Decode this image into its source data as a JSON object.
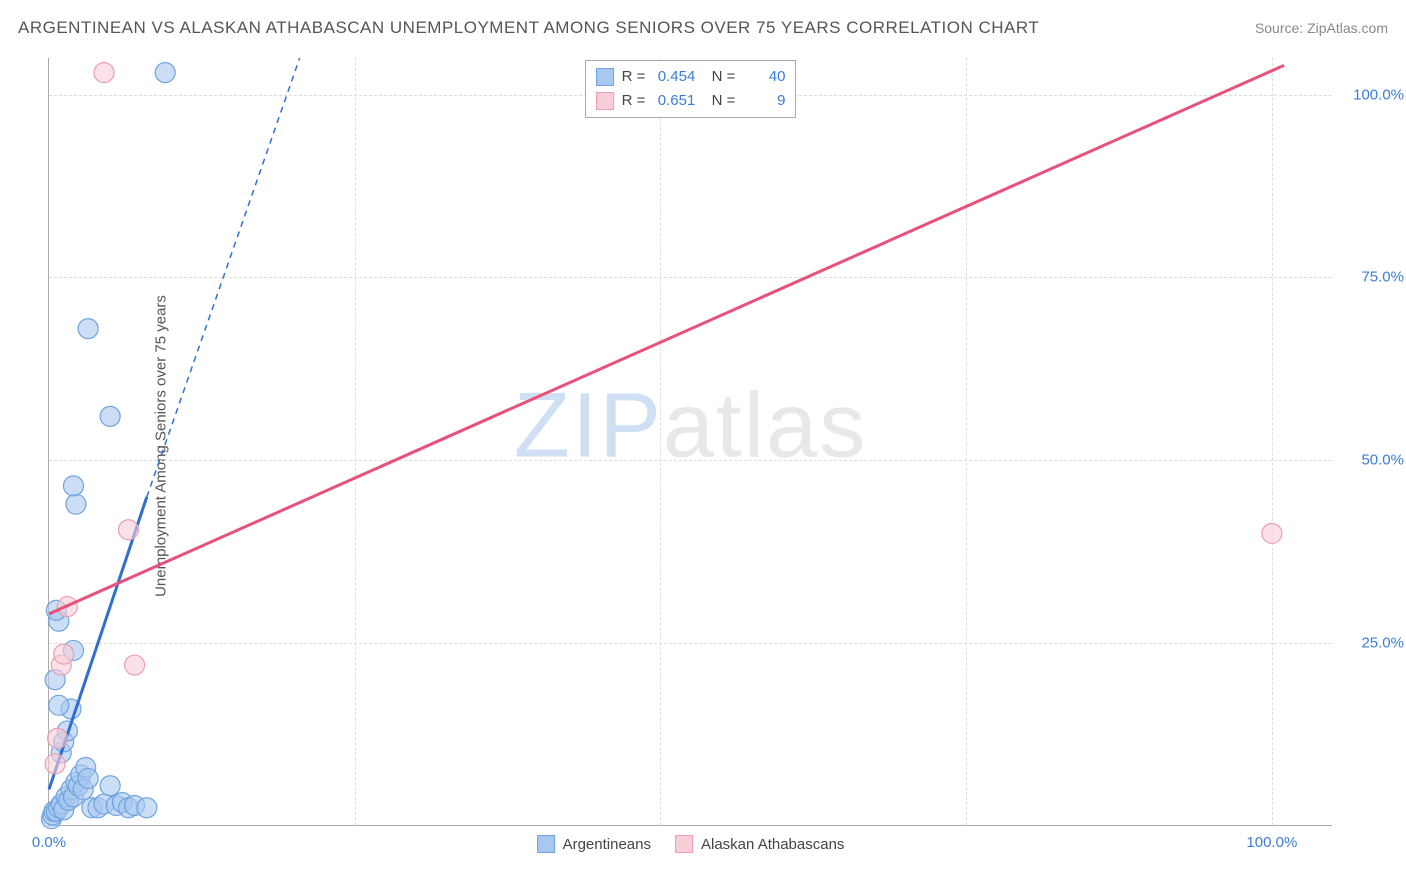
{
  "title": "ARGENTINEAN VS ALASKAN ATHABASCAN UNEMPLOYMENT AMONG SENIORS OVER 75 YEARS CORRELATION CHART",
  "source": "Source: ZipAtlas.com",
  "y_axis_label": "Unemployment Among Seniors over 75 years",
  "watermark_a": "ZIP",
  "watermark_b": "atlas",
  "chart": {
    "type": "scatter",
    "xlim": [
      0,
      105
    ],
    "ylim": [
      0,
      105
    ],
    "x_ticks": [
      {
        "v": 0,
        "label": "0.0%"
      },
      {
        "v": 100,
        "label": "100.0%"
      }
    ],
    "y_ticks": [
      {
        "v": 25,
        "label": "25.0%"
      },
      {
        "v": 50,
        "label": "50.0%"
      },
      {
        "v": 75,
        "label": "75.0%"
      },
      {
        "v": 100,
        "label": "100.0%"
      }
    ],
    "grid_x": [
      25,
      50,
      75,
      100
    ],
    "grid_y": [
      25,
      50,
      75,
      100
    ],
    "grid_color": "#dddddd",
    "background_color": "#ffffff",
    "series": [
      {
        "name": "Argentineans",
        "color_fill": "#a9c8ef",
        "color_stroke": "#6fa3e0",
        "line_color": "#2f6fd0",
        "marker": "circle",
        "marker_size": 10,
        "r_value": "0.454",
        "n_value": "40",
        "trend_solid": {
          "x1": 0,
          "y1": 5,
          "x2": 8,
          "y2": 45
        },
        "trend_dashed": {
          "x1": 8,
          "y1": 45,
          "x2": 20.5,
          "y2": 105
        },
        "points": [
          [
            0.2,
            1.0
          ],
          [
            0.3,
            1.5
          ],
          [
            0.4,
            2.0
          ],
          [
            0.6,
            2.0
          ],
          [
            0.8,
            2.5
          ],
          [
            1.0,
            3.0
          ],
          [
            1.2,
            2.2
          ],
          [
            1.4,
            4.0
          ],
          [
            1.6,
            3.5
          ],
          [
            1.8,
            5.0
          ],
          [
            2.0,
            4.0
          ],
          [
            2.2,
            6.0
          ],
          [
            2.4,
            5.5
          ],
          [
            2.6,
            7.0
          ],
          [
            2.8,
            5.0
          ],
          [
            3.0,
            8.0
          ],
          [
            3.2,
            6.5
          ],
          [
            3.5,
            2.5
          ],
          [
            4.0,
            2.5
          ],
          [
            4.5,
            3.0
          ],
          [
            5.0,
            5.5
          ],
          [
            5.5,
            2.8
          ],
          [
            6.0,
            3.2
          ],
          [
            6.5,
            2.5
          ],
          [
            7.0,
            2.8
          ],
          [
            8.0,
            2.5
          ],
          [
            1.0,
            10.0
          ],
          [
            1.2,
            11.5
          ],
          [
            1.5,
            13.0
          ],
          [
            1.8,
            16.0
          ],
          [
            0.8,
            16.5
          ],
          [
            0.5,
            20.0
          ],
          [
            2.0,
            24.0
          ],
          [
            0.8,
            28.0
          ],
          [
            0.6,
            29.5
          ],
          [
            2.2,
            44.0
          ],
          [
            2.0,
            46.5
          ],
          [
            5.0,
            56.0
          ],
          [
            3.2,
            68.0
          ],
          [
            9.5,
            103.0
          ]
        ]
      },
      {
        "name": "Alaskan Athabascans",
        "color_fill": "#f7cdd7",
        "color_stroke": "#ea9fb3",
        "line_color": "#e8517a",
        "marker": "circle",
        "marker_size": 10,
        "r_value": "0.651",
        "n_value": "9",
        "trend_solid": {
          "x1": 0,
          "y1": 29,
          "x2": 101,
          "y2": 104
        },
        "points": [
          [
            0.5,
            8.5
          ],
          [
            0.7,
            12.0
          ],
          [
            1.0,
            22.0
          ],
          [
            1.2,
            23.5
          ],
          [
            1.5,
            30.0
          ],
          [
            7.0,
            22.0
          ],
          [
            6.5,
            40.5
          ],
          [
            4.5,
            103.0
          ],
          [
            100.0,
            40.0
          ]
        ]
      }
    ]
  },
  "legend_top": [
    {
      "swatch_fill": "#a9c8ef",
      "swatch_stroke": "#6fa3e0",
      "r": "0.454",
      "n": "40"
    },
    {
      "swatch_fill": "#f7cdd7",
      "swatch_stroke": "#ea9fb3",
      "r": "0.651",
      "n": "9"
    }
  ],
  "legend_bottom": [
    {
      "swatch_fill": "#a9c8ef",
      "swatch_stroke": "#6fa3e0",
      "label": "Argentineans"
    },
    {
      "swatch_fill": "#f7cdd7",
      "swatch_stroke": "#ea9fb3",
      "label": "Alaskan Athabascans"
    }
  ],
  "legend_labels": {
    "r_prefix": "R =",
    "n_prefix": "N ="
  }
}
